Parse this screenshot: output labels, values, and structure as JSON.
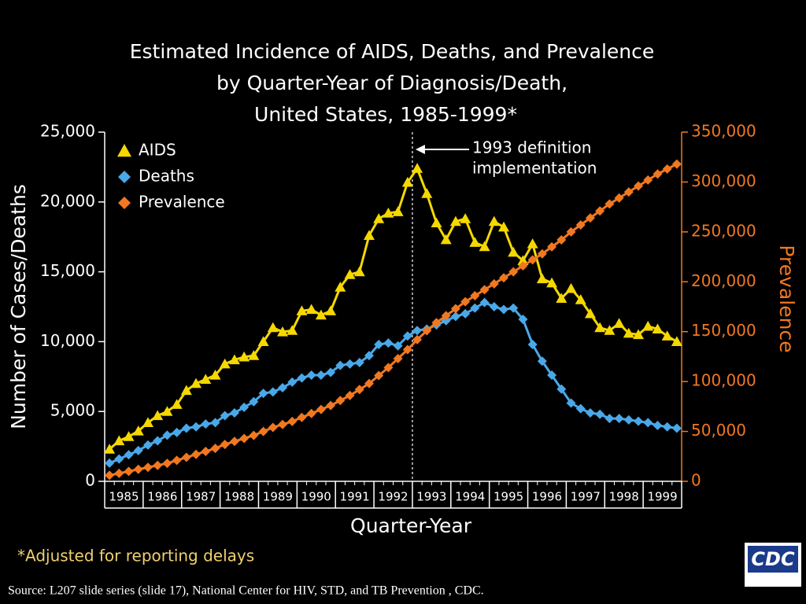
{
  "chart_data": {
    "type": "line",
    "title": [
      "Estimated Incidence of AIDS, Deaths, and Prevalence",
      "by Quarter-Year of Diagnosis/Death,",
      "United States, 1985-1999*"
    ],
    "x_label": "Quarter-Year",
    "y_label": "Number of Cases/Deaths",
    "y2_label": "Prevalence",
    "categories": [
      "1985",
      null,
      null,
      null,
      "1986",
      null,
      null,
      null,
      "1987",
      null,
      null,
      null,
      "1988",
      null,
      null,
      null,
      "1989",
      null,
      null,
      null,
      "1990",
      null,
      null,
      null,
      "1991",
      null,
      null,
      null,
      "1992",
      null,
      null,
      null,
      "1993",
      null,
      null,
      null,
      "1994",
      null,
      null,
      null,
      "1995",
      null,
      null,
      null,
      "1996",
      null,
      null,
      null,
      "1997",
      null,
      null,
      null,
      "1998",
      null,
      null,
      null,
      "1999",
      null,
      null,
      null
    ],
    "ylim": [
      0,
      25000
    ],
    "yticks": [
      0,
      {
        "value": 5000,
        "label": "5,000"
      },
      {
        "value": 10000,
        "label": "10,000"
      },
      {
        "value": 15000,
        "label": "15,000"
      },
      {
        "value": 20000,
        "label": "20,000"
      },
      {
        "value": 25000,
        "label": "25,000"
      }
    ],
    "y2lim": [
      0,
      350000
    ],
    "y2ticks": [
      0,
      {
        "value": 50000,
        "label": "50,000"
      },
      {
        "value": 100000,
        "label": "100,000"
      },
      {
        "value": 150000,
        "label": "150,000"
      },
      {
        "value": 200000,
        "label": "200,000"
      },
      {
        "value": 250000,
        "label": "250,000"
      },
      {
        "value": 300000,
        "label": "300,000"
      },
      {
        "value": 350000,
        "label": "350,000"
      }
    ],
    "legend": "upper left",
    "series": [
      {
        "name": "AIDS",
        "color": "#f5d800",
        "marker": "triangle",
        "values": [
          2300,
          2900,
          3200,
          3600,
          4200,
          4700,
          5000,
          5500,
          6500,
          7000,
          7300,
          7600,
          8400,
          8700,
          8900,
          9000,
          10000,
          11000,
          10700,
          10800,
          12200,
          12300,
          11900,
          12200,
          13900,
          14800,
          15000,
          17600,
          18800,
          19200,
          19300,
          21400,
          22400,
          20600,
          18500,
          17300,
          18600,
          18800,
          17100,
          16800,
          18600,
          18200,
          16400,
          15800,
          17000,
          14500,
          14200,
          13100,
          13800,
          13000,
          12000,
          11000,
          10800,
          11300,
          10600,
          10500,
          11100,
          10900,
          10400,
          10000
        ]
      },
      {
        "name": "Deaths",
        "color": "#4aa8e8",
        "marker": "diamond",
        "values": [
          1300,
          1600,
          1900,
          2200,
          2600,
          2900,
          3300,
          3500,
          3800,
          3900,
          4100,
          4200,
          4700,
          4900,
          5300,
          5700,
          6300,
          6400,
          6700,
          7100,
          7400,
          7600,
          7600,
          7800,
          8300,
          8400,
          8500,
          9000,
          9800,
          9900,
          9700,
          10400,
          10800,
          10900,
          11200,
          11500,
          11800,
          12000,
          12400,
          12800,
          12500,
          12300,
          12400,
          11600,
          9800,
          8600,
          7600,
          6600,
          5600,
          5200,
          4900,
          4800,
          4500,
          4500,
          4400,
          4300,
          4200,
          4000,
          3900,
          3800
        ]
      },
      {
        "name": "Prevalence",
        "color": "#f07820",
        "marker": "diamond",
        "axis": "y2",
        "values": [
          6000,
          8000,
          10000,
          12000,
          14000,
          16000,
          18000,
          21000,
          24000,
          27000,
          30000,
          33000,
          37000,
          40000,
          43000,
          46000,
          50000,
          54000,
          57000,
          60000,
          64000,
          68000,
          72000,
          76000,
          81000,
          86000,
          92000,
          98000,
          106000,
          114000,
          123000,
          132000,
          142000,
          151000,
          159000,
          166000,
          173000,
          180000,
          186000,
          192000,
          198000,
          204000,
          210000,
          216000,
          222000,
          228000,
          235000,
          242000,
          250000,
          257000,
          264000,
          271000,
          278000,
          284000,
          290000,
          296000,
          302000,
          308000,
          313000,
          318000
        ]
      }
    ],
    "annotation": [
      "1993 definition",
      "implementation"
    ],
    "footnote": "*Adjusted for reporting delays"
  },
  "source": "Source:  L207 slide series (slide 17), National Center for HIV, STD, and TB Prevention , CDC.",
  "logo": "CDC"
}
